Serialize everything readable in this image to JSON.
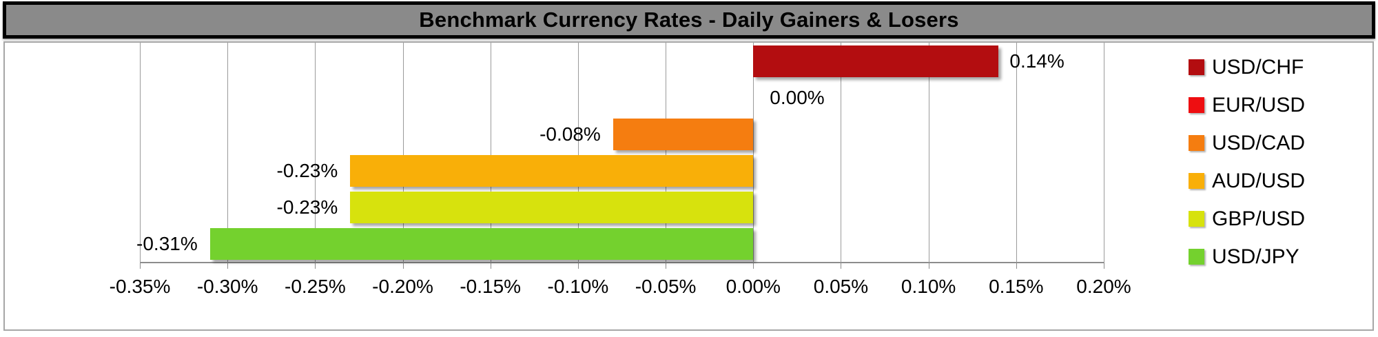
{
  "header": {
    "title": "Benchmark Currency Rates - Daily Gainers & Losers",
    "background_color": "#8a8a8a",
    "border_color": "#000000",
    "text_color": "#000000"
  },
  "chart_data": {
    "type": "bar",
    "orientation": "horizontal",
    "title": "Benchmark Currency Rates - Daily Gainers & Losers",
    "categories": [
      "USD/CHF",
      "EUR/USD",
      "USD/CAD",
      "AUD/USD",
      "GBP/USD",
      "USD/JPY"
    ],
    "values": [
      0.14,
      0.0,
      -0.08,
      -0.23,
      -0.23,
      -0.31
    ],
    "data_labels": [
      "0.14%",
      "0.00%",
      "-0.08%",
      "-0.23%",
      "-0.23%",
      "-0.31%"
    ],
    "colors": [
      "#b30d10",
      "#ee0e11",
      "#f57d10",
      "#f9af08",
      "#d7e20d",
      "#74d12e"
    ],
    "xlim": [
      -0.35,
      0.2
    ],
    "tick_values": [
      -0.35,
      -0.3,
      -0.25,
      -0.2,
      -0.15,
      -0.1,
      -0.05,
      0.0,
      0.05,
      0.1,
      0.15,
      0.2
    ],
    "tick_labels": [
      "-0.35%",
      "-0.30%",
      "-0.25%",
      "-0.20%",
      "-0.15%",
      "-0.10%",
      "-0.05%",
      "0.00%",
      "0.05%",
      "0.10%",
      "0.15%",
      "0.20%"
    ],
    "xlabel": "",
    "ylabel": "",
    "grid": true,
    "legend_position": "right",
    "legend_entries": [
      "USD/CHF",
      "EUR/USD",
      "USD/CAD",
      "AUD/USD",
      "GBP/USD",
      "USD/JPY"
    ]
  },
  "style": {
    "gridline_color": "#9a9a9a",
    "axis_color": "#8c8c8c",
    "chart_border_color": "#a6a6a6",
    "plot_background": "#ffffff"
  }
}
